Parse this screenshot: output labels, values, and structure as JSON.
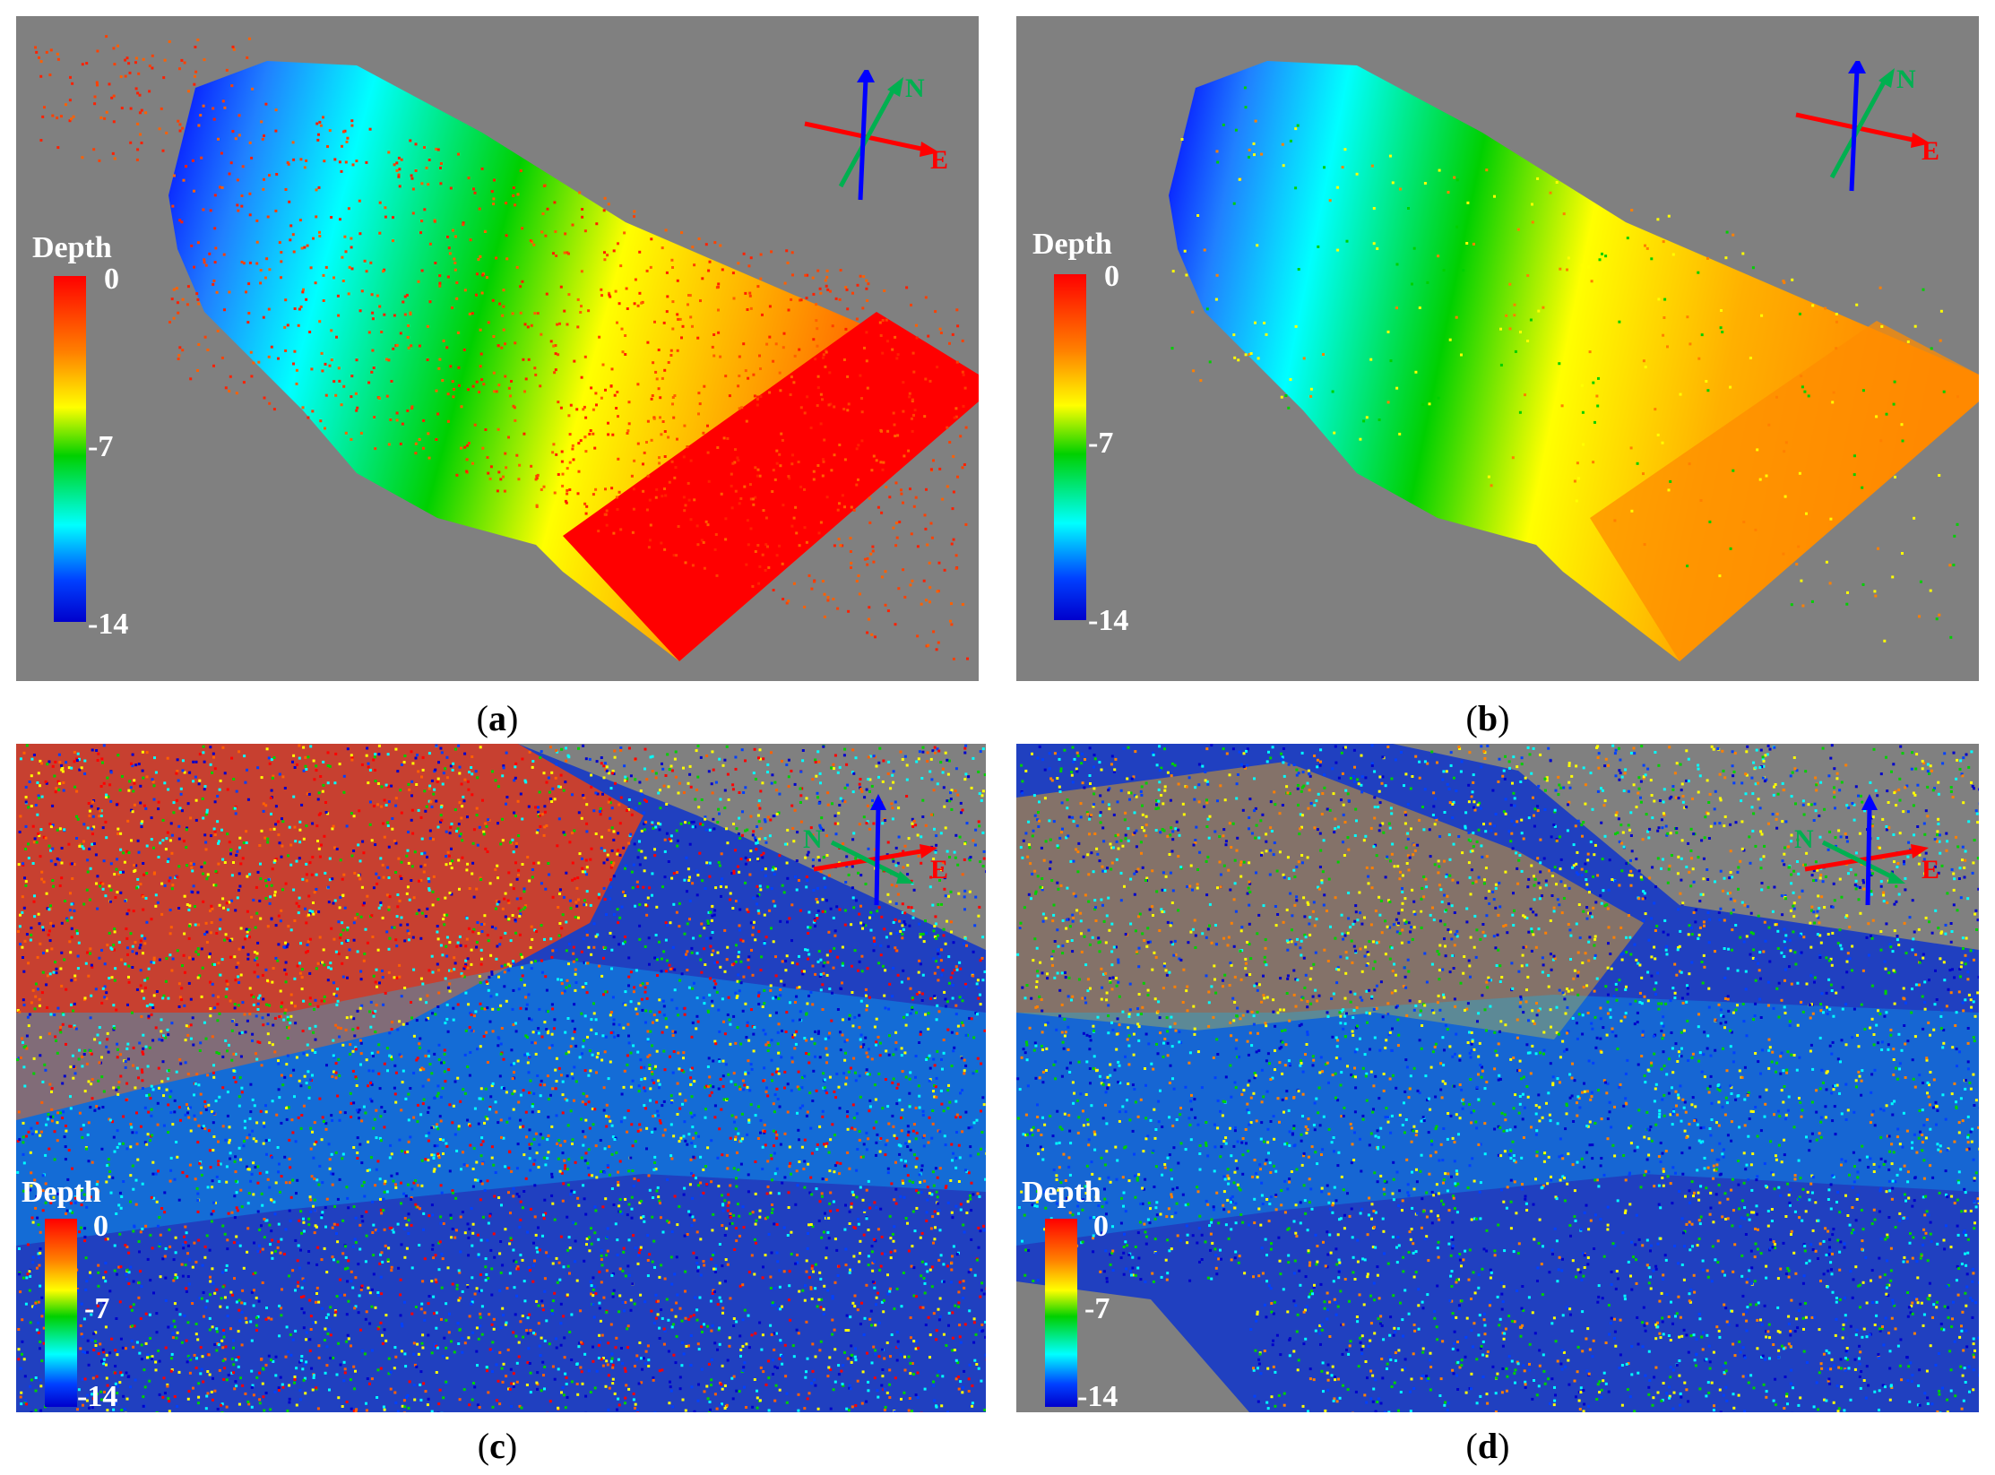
{
  "panels": [
    {
      "id": "a",
      "caption_open": "(",
      "caption_letter": "a",
      "caption_close": ")"
    },
    {
      "id": "b",
      "caption_open": "(",
      "caption_letter": "b",
      "caption_close": ")"
    },
    {
      "id": "c",
      "caption_open": "(",
      "caption_letter": "c",
      "caption_close": ")"
    },
    {
      "id": "d",
      "caption_open": "(",
      "caption_letter": "d",
      "caption_close": ")"
    }
  ],
  "legend": {
    "title": "Depth",
    "ticks": [
      "0",
      "-7",
      "-14"
    ],
    "colors": [
      "#ff0000",
      "#ff8000",
      "#ffff00",
      "#00d000",
      "#00ffff",
      "#0040ff",
      "#0000cc"
    ]
  },
  "compass": {
    "north_label": "N",
    "east_label": "E",
    "up_color": "#0000ff",
    "north_color": "#00b050",
    "east_color": "#ff0000"
  },
  "background_color": "#808080"
}
